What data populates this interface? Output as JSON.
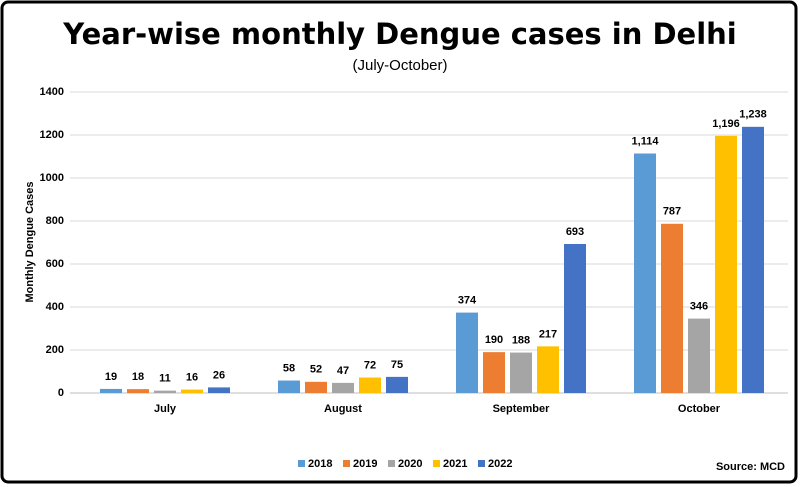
{
  "chart_data": {
    "type": "bar",
    "title": "Year-wise monthly Dengue cases in Delhi",
    "subtitle": "(July-October)",
    "y_label": "Monthly Dengue Cases",
    "annotation": "Source: MCD",
    "categories": [
      "July",
      "August",
      "September",
      "October"
    ],
    "series": [
      {
        "name": "2018",
        "color": "#5b9bd5",
        "values": [
          19,
          58,
          374,
          1114
        ],
        "value_labels": [
          "19",
          "58",
          "374",
          "1,114"
        ]
      },
      {
        "name": "2019",
        "color": "#ed7d31",
        "values": [
          18,
          52,
          190,
          787
        ]
      },
      {
        "name": "2020",
        "color": "#a5a5a5",
        "values": [
          11,
          47,
          188,
          346
        ]
      },
      {
        "name": "2021",
        "color": "#ffc000",
        "values": [
          16,
          72,
          217,
          1196
        ],
        "value_labels": [
          "16",
          "72",
          "217",
          "1,196"
        ]
      },
      {
        "name": "2022",
        "color": "#4472c4",
        "values": [
          26,
          75,
          693,
          1238
        ],
        "value_labels": [
          "26",
          "75",
          "693",
          "1,238"
        ]
      }
    ],
    "ylim": [
      0,
      1400
    ],
    "yticks": [
      0,
      200,
      400,
      600,
      800,
      1000,
      1200,
      1400
    ],
    "grid": true,
    "legend": "bottom"
  }
}
